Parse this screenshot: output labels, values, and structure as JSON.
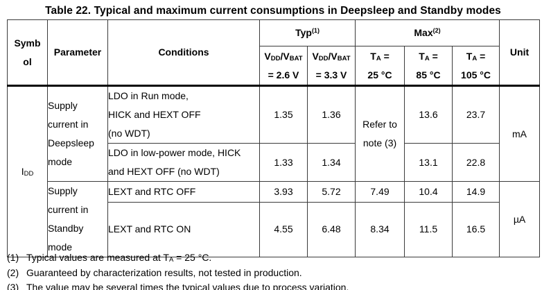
{
  "title": "Table 22. Typical and maximum current consumptions in Deepsleep and Standby modes",
  "header": {
    "symbol": [
      {
        "t": "Symb"
      },
      {
        "br": true
      },
      {
        "t": "ol"
      }
    ],
    "parameter": "Parameter",
    "conditions": "Conditions",
    "typ_group": [
      {
        "t": "Typ"
      },
      {
        "t": "(1)",
        "sup": true
      }
    ],
    "max_group": [
      {
        "t": "Max"
      },
      {
        "t": "(2)",
        "sup": true
      }
    ],
    "typ_2v6": [
      {
        "t": "V"
      },
      {
        "t": "DD",
        "sub": true
      },
      {
        "t": "/V"
      },
      {
        "t": "BAT",
        "sub": true
      },
      {
        "br": true
      },
      {
        "t": "= 2.6 V"
      }
    ],
    "typ_3v3": [
      {
        "t": "V"
      },
      {
        "t": "DD",
        "sub": true
      },
      {
        "t": "/V"
      },
      {
        "t": "BAT",
        "sub": true
      },
      {
        "br": true
      },
      {
        "t": "= 3.3 V"
      }
    ],
    "max_25": [
      {
        "t": "T"
      },
      {
        "t": "A",
        "sub": true
      },
      {
        "t": " ="
      },
      {
        "br": true
      },
      {
        "t": "25 °C"
      }
    ],
    "max_85": [
      {
        "t": "T"
      },
      {
        "t": "A",
        "sub": true
      },
      {
        "t": " ="
      },
      {
        "br": true
      },
      {
        "t": "85 °C"
      }
    ],
    "max_105": [
      {
        "t": "T"
      },
      {
        "t": "A",
        "sub": true
      },
      {
        "t": " ="
      },
      {
        "br": true
      },
      {
        "t": "105 °C"
      }
    ],
    "unit": "Unit"
  },
  "body": {
    "symbol": [
      {
        "t": "I"
      },
      {
        "t": "DD",
        "sub": true
      }
    ],
    "deepsleep": {
      "parameter": [
        {
          "t": "Supply"
        },
        {
          "br": true
        },
        {
          "t": "current in"
        },
        {
          "br": true
        },
        {
          "t": "Deepsleep"
        },
        {
          "br": true
        },
        {
          "t": "mode"
        }
      ],
      "max_25_note": [
        {
          "t": "Refer to"
        },
        {
          "br": true
        },
        {
          "t": "note (3)"
        }
      ],
      "unit": "mA",
      "rows": [
        {
          "conditions": [
            {
              "t": "LDO in Run mode,"
            },
            {
              "br": true
            },
            {
              "t": "HICK and HEXT OFF"
            },
            {
              "br": true
            },
            {
              "t": "(no WDT)"
            }
          ],
          "typ_2v6": "1.35",
          "typ_3v3": "1.36",
          "max_85": "13.6",
          "max_105": "23.7"
        },
        {
          "conditions": [
            {
              "t": "LDO in low-power mode, HICK"
            },
            {
              "br": true
            },
            {
              "t": "and HEXT OFF (no WDT)"
            }
          ],
          "typ_2v6": "1.33",
          "typ_3v3": "1.34",
          "max_85": "13.1",
          "max_105": "22.8"
        }
      ]
    },
    "standby": {
      "parameter": [
        {
          "t": "Supply"
        },
        {
          "br": true
        },
        {
          "t": "current in"
        },
        {
          "br": true
        },
        {
          "t": "Standby"
        },
        {
          "br": true
        },
        {
          "t": "mode"
        }
      ],
      "unit": "µA",
      "rows": [
        {
          "conditions": "LEXT and RTC OFF",
          "typ_2v6": "3.93",
          "typ_3v3": "5.72",
          "max_25": "7.49",
          "max_85": "10.4",
          "max_105": "14.9"
        },
        {
          "conditions": "LEXT and RTC ON",
          "typ_2v6": "4.55",
          "typ_3v3": "6.48",
          "max_25": "8.34",
          "max_85": "11.5",
          "max_105": "16.5"
        }
      ]
    }
  },
  "footnotes": [
    {
      "num": "(1)",
      "text": [
        {
          "t": "Typical values are measured at T"
        },
        {
          "t": "A",
          "sub": true
        },
        {
          "t": " = 25 °C."
        }
      ]
    },
    {
      "num": "(2)",
      "text": [
        {
          "t": "Guaranteed by characterization results, not tested in production."
        }
      ]
    },
    {
      "num": "(3)",
      "text": [
        {
          "t": "The value may be several times the typical values due to process variation."
        }
      ]
    }
  ]
}
